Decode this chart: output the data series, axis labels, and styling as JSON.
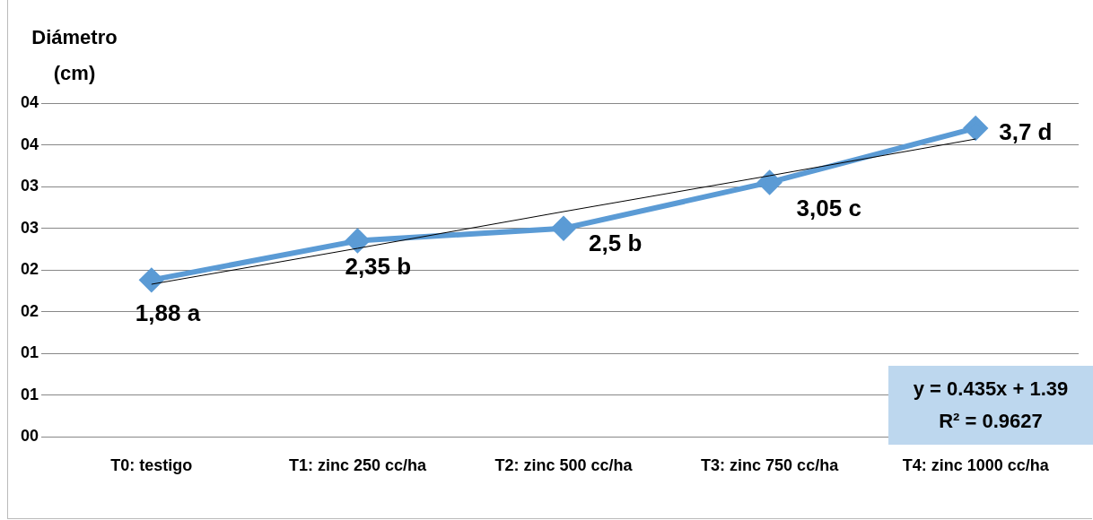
{
  "chart_data": {
    "type": "line",
    "ylabel": "Diámetro (cm)",
    "categories": [
      "T0: testigo",
      "T1: zinc 250 cc/ha",
      "T2: zinc 500 cc/ha",
      "T3: zinc 750 cc/ha",
      "T4: zinc 1000 cc/ha"
    ],
    "series": [
      {
        "color": "#5b9bd5",
        "values": [
          1.88,
          2.35,
          2.5,
          3.05,
          3.7
        ],
        "value_labels": [
          "1,88 a",
          "2,35 b",
          "2,5 b",
          "3,05 c",
          "3,7 d"
        ],
        "marker": "diamond"
      },
      {
        "color": "#000000",
        "values": [
          1.83,
          2.26,
          2.7,
          3.13,
          3.57
        ],
        "marker": "none"
      }
    ],
    "ylim": [
      0,
      4
    ],
    "yticks": [
      {
        "value": 0,
        "label": "00"
      },
      {
        "value": 0.5,
        "label": "01"
      },
      {
        "value": 1,
        "label": "01"
      },
      {
        "value": 1.5,
        "label": "02"
      },
      {
        "value": 2,
        "label": "02"
      },
      {
        "value": 2.5,
        "label": "03"
      },
      {
        "value": 3,
        "label": "03"
      },
      {
        "value": 3.5,
        "label": "04"
      },
      {
        "value": 4,
        "label": "04"
      }
    ],
    "grid": "y",
    "legend": false,
    "annotations": [
      "y = 0.435x + 1.39",
      "R² = 0.9627"
    ]
  }
}
